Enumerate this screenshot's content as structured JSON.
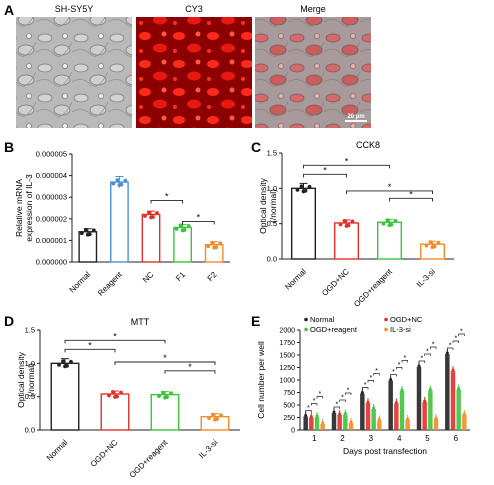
{
  "figure": {
    "panel_letters": [
      "A",
      "B",
      "C",
      "D",
      "E"
    ],
    "micrographs": {
      "titles": [
        "SH-SY5Y",
        "CY3",
        "Merge"
      ],
      "scale_bar": "20 μm"
    }
  },
  "chart_data": [
    {
      "panel": "B",
      "type": "bar",
      "categories": [
        "Normal",
        "Reagent",
        "NC",
        "F1",
        "F2"
      ],
      "values": [
        1.4e-06,
        3.7e-06,
        2.2e-06,
        1.6e-06,
        8e-07
      ],
      "colors": [
        "#222222",
        "#4a90d9",
        "#e0302e",
        "#3cc43c",
        "#f28c28"
      ],
      "title": "",
      "xlabel": "",
      "ylabel": "Relative mRNA expression of IL-3",
      "ylim": [
        0,
        5e-06
      ],
      "yticks": [
        "0.000000",
        "0.000001",
        "0.000002",
        "0.000003",
        "0.000004",
        "0.000005"
      ],
      "sig_label": "*"
    },
    {
      "panel": "C",
      "type": "bar",
      "categories": [
        "Normal",
        "OGD+NC",
        "OGD+reagent",
        "IL-3-si"
      ],
      "values": [
        1.0,
        0.51,
        0.52,
        0.21
      ],
      "colors": [
        "#222222",
        "#e0302e",
        "#3cc43c",
        "#f28c28"
      ],
      "title": "CCK8",
      "xlabel": "",
      "ylabel": "Optical density (/normal)",
      "ylim": [
        0,
        1.5
      ],
      "yticks": [
        "0.0",
        "0.5",
        "1.0",
        "1.5"
      ],
      "sig_label": "*"
    },
    {
      "panel": "D",
      "type": "bar",
      "categories": [
        "Normal",
        "OGD+NC",
        "OGD+reagent",
        "IL-3-si"
      ],
      "values": [
        1.0,
        0.54,
        0.53,
        0.2
      ],
      "colors": [
        "#222222",
        "#e0302e",
        "#3cc43c",
        "#f28c28"
      ],
      "title": "MTT",
      "xlabel": "",
      "ylabel": "Optical density (/normal)",
      "ylim": [
        0,
        1.5
      ],
      "yticks": [
        "0.0",
        "0.5",
        "1.0",
        "1.5"
      ],
      "sig_label": "*"
    },
    {
      "panel": "E",
      "type": "bar",
      "categories": [
        "1",
        "2",
        "3",
        "4",
        "5",
        "6"
      ],
      "series": [
        {
          "name": "Normal",
          "values": [
            270,
            340,
            730,
            990,
            1260,
            1520
          ]
        },
        {
          "name": "OGD+NC",
          "values": [
            250,
            300,
            540,
            530,
            560,
            1180
          ]
        },
        {
          "name": "OGD+reagent",
          "values": [
            260,
            310,
            420,
            780,
            790,
            810
          ]
        },
        {
          "name": "IL-3-si",
          "values": [
            120,
            140,
            190,
            200,
            220,
            300
          ]
        }
      ],
      "colors": [
        "#222222",
        "#e0302e",
        "#3cc43c",
        "#f28c28"
      ],
      "title": "",
      "xlabel": "Days post transfection",
      "ylabel": "Cell number per well",
      "ylim": [
        0,
        2000
      ],
      "yticks": [
        "0",
        "250",
        "500",
        "750",
        "1000",
        "1250",
        "1500",
        "1750",
        "2000"
      ],
      "sig_label": "*"
    }
  ]
}
